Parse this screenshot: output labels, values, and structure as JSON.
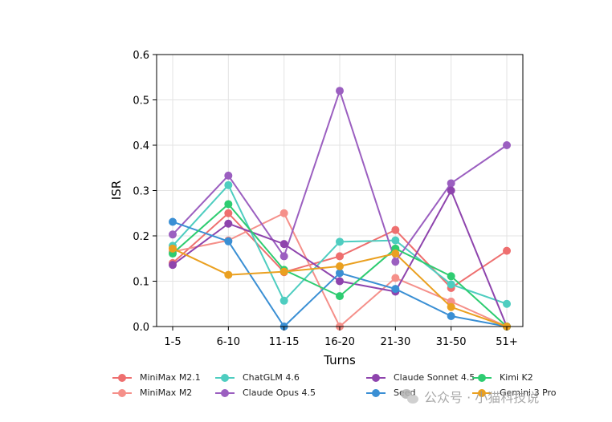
{
  "chart_data": {
    "type": "line",
    "xlabel": "Turns",
    "ylabel": "ISR",
    "ylim": [
      0,
      0.6
    ],
    "yticks": [
      "0.0",
      "0.1",
      "0.2",
      "0.3",
      "0.4",
      "0.5",
      "0.6"
    ],
    "categories": [
      "1-5",
      "6-10",
      "11-15",
      "16-20",
      "21-30",
      "31-50",
      "51+"
    ],
    "grid": true,
    "legend_position": "bottom",
    "series": [
      {
        "name": "MiniMax M2.1",
        "color": "#ee6f6f",
        "values": [
          0.14,
          0.25,
          0.12,
          0.155,
          0.213,
          0.085,
          0.167
        ]
      },
      {
        "name": "MiniMax M2",
        "color": "#f5908a",
        "values": [
          0.165,
          0.19,
          0.25,
          0.0,
          0.107,
          0.055,
          0.0
        ]
      },
      {
        "name": "ChatGLM 4.6",
        "color": "#4ecdc0",
        "values": [
          0.178,
          0.312,
          0.057,
          0.187,
          0.19,
          0.093,
          0.05
        ]
      },
      {
        "name": "Claude Opus 4.5",
        "color": "#9b5fc0",
        "values": [
          0.203,
          0.333,
          0.155,
          0.52,
          0.143,
          0.316,
          0.4
        ]
      },
      {
        "name": "Claude Sonnet 4.5",
        "color": "#8e44ad",
        "values": [
          0.136,
          0.227,
          0.182,
          0.1,
          0.077,
          0.3,
          0.0
        ]
      },
      {
        "name": "Seed",
        "color": "#3a8fd4",
        "values": [
          0.231,
          0.188,
          0.0,
          0.118,
          0.083,
          0.023,
          0.0
        ]
      },
      {
        "name": "Kimi K2",
        "color": "#2ecc71",
        "values": [
          0.161,
          0.27,
          0.125,
          0.067,
          0.172,
          0.111,
          0.0
        ]
      },
      {
        "name": "Gemini 3 Pro",
        "color": "#eaa020",
        "values": [
          0.172,
          0.114,
          0.121,
          0.133,
          0.161,
          0.043,
          0.0
        ]
      }
    ]
  },
  "watermark": {
    "text": "公众号 · 小猫科技说"
  }
}
